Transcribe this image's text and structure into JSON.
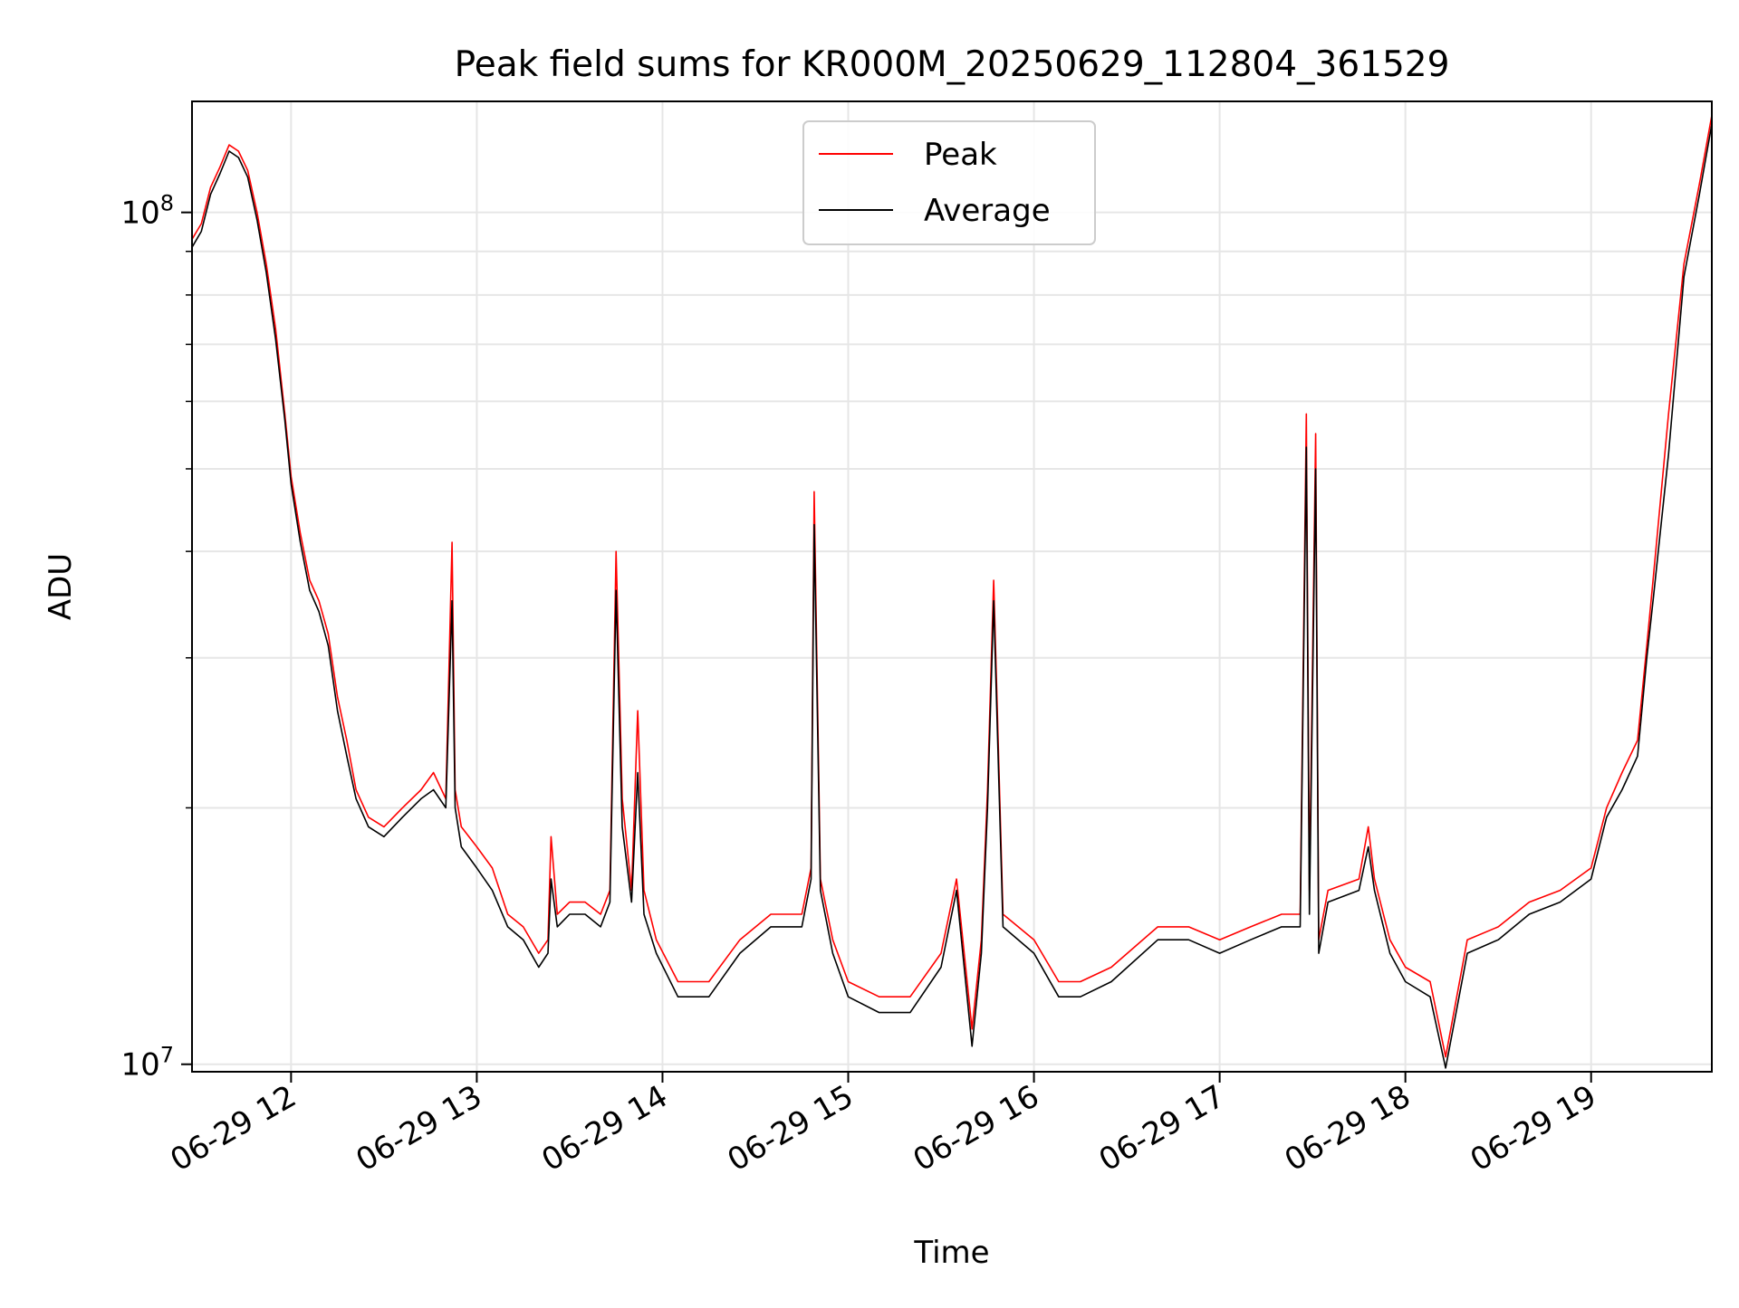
{
  "chart_data": {
    "type": "line",
    "title": "Peak field sums for KR000M_20250629_112804_361529",
    "xlabel": "Time",
    "ylabel": "ADU",
    "y_scale": "log",
    "ylim": [
      9800000,
      135000000
    ],
    "xlim": [
      "2025-06-29 11:28",
      "2025-06-29 19:39"
    ],
    "x_tick_labels": [
      "06-29 12",
      "06-29 13",
      "06-29 14",
      "06-29 15",
      "06-29 16",
      "06-29 17",
      "06-29 18",
      "06-29 19"
    ],
    "x_ticks": [
      "2025-06-29 12:00",
      "2025-06-29 13:00",
      "2025-06-29 14:00",
      "2025-06-29 15:00",
      "2025-06-29 16:00",
      "2025-06-29 17:00",
      "2025-06-29 18:00",
      "2025-06-29 19:00"
    ],
    "y_major_ticks": [
      10000000,
      100000000
    ],
    "y_minor_ticks": [
      20000000,
      30000000,
      40000000,
      50000000,
      60000000,
      70000000,
      80000000,
      90000000
    ],
    "grid": true,
    "legend_position": "top-center",
    "colors": {
      "Peak": "#ff0000",
      "Average": "#000000"
    },
    "series": [
      {
        "name": "Peak",
        "x": [
          "2025-06-29 11:28",
          "2025-06-29 11:31",
          "2025-06-29 11:34",
          "2025-06-29 11:37",
          "2025-06-29 11:40",
          "2025-06-29 11:43",
          "2025-06-29 11:46",
          "2025-06-29 11:49",
          "2025-06-29 11:52",
          "2025-06-29 11:55",
          "2025-06-29 11:58",
          "2025-06-29 12:00",
          "2025-06-29 12:03",
          "2025-06-29 12:06",
          "2025-06-29 12:09",
          "2025-06-29 12:12",
          "2025-06-29 12:15",
          "2025-06-29 12:18",
          "2025-06-29 12:21",
          "2025-06-29 12:25",
          "2025-06-29 12:30",
          "2025-06-29 12:36",
          "2025-06-29 12:42",
          "2025-06-29 12:46",
          "2025-06-29 12:50",
          "2025-06-29 12:52",
          "2025-06-29 12:53",
          "2025-06-29 12:55",
          "2025-06-29 13:00",
          "2025-06-29 13:05",
          "2025-06-29 13:10",
          "2025-06-29 13:15",
          "2025-06-29 13:20",
          "2025-06-29 13:23",
          "2025-06-29 13:24",
          "2025-06-29 13:26",
          "2025-06-29 13:30",
          "2025-06-29 13:35",
          "2025-06-29 13:40",
          "2025-06-29 13:43",
          "2025-06-29 13:45",
          "2025-06-29 13:47",
          "2025-06-29 13:50",
          "2025-06-29 13:52",
          "2025-06-29 13:54",
          "2025-06-29 13:58",
          "2025-06-29 14:05",
          "2025-06-29 14:15",
          "2025-06-29 14:25",
          "2025-06-29 14:35",
          "2025-06-29 14:40",
          "2025-06-29 14:45",
          "2025-06-29 14:48",
          "2025-06-29 14:49",
          "2025-06-29 14:51",
          "2025-06-29 14:55",
          "2025-06-29 15:00",
          "2025-06-29 15:10",
          "2025-06-29 15:20",
          "2025-06-29 15:30",
          "2025-06-29 15:35",
          "2025-06-29 15:40",
          "2025-06-29 15:43",
          "2025-06-29 15:45",
          "2025-06-29 15:47",
          "2025-06-29 15:50",
          "2025-06-29 16:00",
          "2025-06-29 16:08",
          "2025-06-29 16:15",
          "2025-06-29 16:25",
          "2025-06-29 16:40",
          "2025-06-29 16:50",
          "2025-06-29 17:00",
          "2025-06-29 17:10",
          "2025-06-29 17:20",
          "2025-06-29 17:26",
          "2025-06-29 17:28",
          "2025-06-29 17:29",
          "2025-06-29 17:31",
          "2025-06-29 17:32",
          "2025-06-29 17:35",
          "2025-06-29 17:45",
          "2025-06-29 17:48",
          "2025-06-29 17:50",
          "2025-06-29 17:55",
          "2025-06-29 18:00",
          "2025-06-29 18:08",
          "2025-06-29 18:13",
          "2025-06-29 18:20",
          "2025-06-29 18:30",
          "2025-06-29 18:40",
          "2025-06-29 18:50",
          "2025-06-29 19:00",
          "2025-06-29 19:05",
          "2025-06-29 19:10",
          "2025-06-29 19:15",
          "2025-06-29 19:18",
          "2025-06-29 19:20",
          "2025-06-29 19:25",
          "2025-06-29 19:30",
          "2025-06-29 19:35",
          "2025-06-29 19:39"
        ],
        "values": [
          93000000,
          97000000,
          107000000,
          113000000,
          120000000,
          118000000,
          112000000,
          100000000,
          87000000,
          73000000,
          58000000,
          49000000,
          42000000,
          37000000,
          35000000,
          32000000,
          27000000,
          24000000,
          21000000,
          19500000,
          19000000,
          20000000,
          21000000,
          22000000,
          20500000,
          41000000,
          21000000,
          19000000,
          18000000,
          17000000,
          15000000,
          14500000,
          13500000,
          14000000,
          18500000,
          15000000,
          15500000,
          15500000,
          15000000,
          16000000,
          40000000,
          20500000,
          16000000,
          26000000,
          16000000,
          14000000,
          12500000,
          12500000,
          14000000,
          15000000,
          15000000,
          15000000,
          17000000,
          47000000,
          16500000,
          14000000,
          12500000,
          12000000,
          12000000,
          13500000,
          16500000,
          11000000,
          14000000,
          21000000,
          37000000,
          15000000,
          14000000,
          12500000,
          12500000,
          13000000,
          14500000,
          14500000,
          14000000,
          14500000,
          15000000,
          15000000,
          58000000,
          16000000,
          55000000,
          14000000,
          16000000,
          16500000,
          19000000,
          16500000,
          14000000,
          13000000,
          12500000,
          10200000,
          14000000,
          14500000,
          15500000,
          16000000,
          17000000,
          20000000,
          22000000,
          24000000,
          31000000,
          37000000,
          58000000,
          87000000,
          108000000,
          130000000
        ]
      },
      {
        "name": "Average",
        "x": [
          "2025-06-29 11:28",
          "2025-06-29 11:31",
          "2025-06-29 11:34",
          "2025-06-29 11:37",
          "2025-06-29 11:40",
          "2025-06-29 11:43",
          "2025-06-29 11:46",
          "2025-06-29 11:49",
          "2025-06-29 11:52",
          "2025-06-29 11:55",
          "2025-06-29 11:58",
          "2025-06-29 12:00",
          "2025-06-29 12:03",
          "2025-06-29 12:06",
          "2025-06-29 12:09",
          "2025-06-29 12:12",
          "2025-06-29 12:15",
          "2025-06-29 12:18",
          "2025-06-29 12:21",
          "2025-06-29 12:25",
          "2025-06-29 12:30",
          "2025-06-29 12:36",
          "2025-06-29 12:42",
          "2025-06-29 12:46",
          "2025-06-29 12:50",
          "2025-06-29 12:52",
          "2025-06-29 12:53",
          "2025-06-29 12:55",
          "2025-06-29 13:00",
          "2025-06-29 13:05",
          "2025-06-29 13:10",
          "2025-06-29 13:15",
          "2025-06-29 13:20",
          "2025-06-29 13:23",
          "2025-06-29 13:24",
          "2025-06-29 13:26",
          "2025-06-29 13:30",
          "2025-06-29 13:35",
          "2025-06-29 13:40",
          "2025-06-29 13:43",
          "2025-06-29 13:45",
          "2025-06-29 13:47",
          "2025-06-29 13:50",
          "2025-06-29 13:52",
          "2025-06-29 13:54",
          "2025-06-29 13:58",
          "2025-06-29 14:05",
          "2025-06-29 14:15",
          "2025-06-29 14:25",
          "2025-06-29 14:35",
          "2025-06-29 14:40",
          "2025-06-29 14:45",
          "2025-06-29 14:48",
          "2025-06-29 14:49",
          "2025-06-29 14:51",
          "2025-06-29 14:55",
          "2025-06-29 15:00",
          "2025-06-29 15:10",
          "2025-06-29 15:20",
          "2025-06-29 15:30",
          "2025-06-29 15:35",
          "2025-06-29 15:40",
          "2025-06-29 15:43",
          "2025-06-29 15:45",
          "2025-06-29 15:47",
          "2025-06-29 15:50",
          "2025-06-29 16:00",
          "2025-06-29 16:08",
          "2025-06-29 16:15",
          "2025-06-29 16:25",
          "2025-06-29 16:40",
          "2025-06-29 16:50",
          "2025-06-29 17:00",
          "2025-06-29 17:10",
          "2025-06-29 17:20",
          "2025-06-29 17:26",
          "2025-06-29 17:28",
          "2025-06-29 17:29",
          "2025-06-29 17:31",
          "2025-06-29 17:32",
          "2025-06-29 17:35",
          "2025-06-29 17:45",
          "2025-06-29 17:48",
          "2025-06-29 17:50",
          "2025-06-29 17:55",
          "2025-06-29 18:00",
          "2025-06-29 18:08",
          "2025-06-29 18:13",
          "2025-06-29 18:20",
          "2025-06-29 18:30",
          "2025-06-29 18:40",
          "2025-06-29 18:50",
          "2025-06-29 19:00",
          "2025-06-29 19:05",
          "2025-06-29 19:10",
          "2025-06-29 19:15",
          "2025-06-29 19:18",
          "2025-06-29 19:20",
          "2025-06-29 19:25",
          "2025-06-29 19:30",
          "2025-06-29 19:35",
          "2025-06-29 19:39"
        ],
        "values": [
          91000000,
          95000000,
          105000000,
          111000000,
          118000000,
          116000000,
          110000000,
          98000000,
          85000000,
          71000000,
          57000000,
          48000000,
          41000000,
          36000000,
          34000000,
          31000000,
          26000000,
          23000000,
          20500000,
          19000000,
          18500000,
          19500000,
          20500000,
          21000000,
          20000000,
          35000000,
          20000000,
          18000000,
          17000000,
          16000000,
          14500000,
          14000000,
          13000000,
          13500000,
          16500000,
          14500000,
          15000000,
          15000000,
          14500000,
          15500000,
          36000000,
          19000000,
          15500000,
          22000000,
          15000000,
          13500000,
          12000000,
          12000000,
          13500000,
          14500000,
          14500000,
          14500000,
          16500000,
          43000000,
          16000000,
          13500000,
          12000000,
          11500000,
          11500000,
          13000000,
          16000000,
          10500000,
          13500000,
          20000000,
          35000000,
          14500000,
          13500000,
          12000000,
          12000000,
          12500000,
          14000000,
          14000000,
          13500000,
          14000000,
          14500000,
          14500000,
          53000000,
          15000000,
          50000000,
          13500000,
          15500000,
          16000000,
          18000000,
          16000000,
          13500000,
          12500000,
          12000000,
          9900000,
          13500000,
          14000000,
          15000000,
          15500000,
          16500000,
          19500000,
          21000000,
          23000000,
          30000000,
          35000000,
          52000000,
          84000000,
          105000000,
          127000000
        ]
      }
    ]
  }
}
